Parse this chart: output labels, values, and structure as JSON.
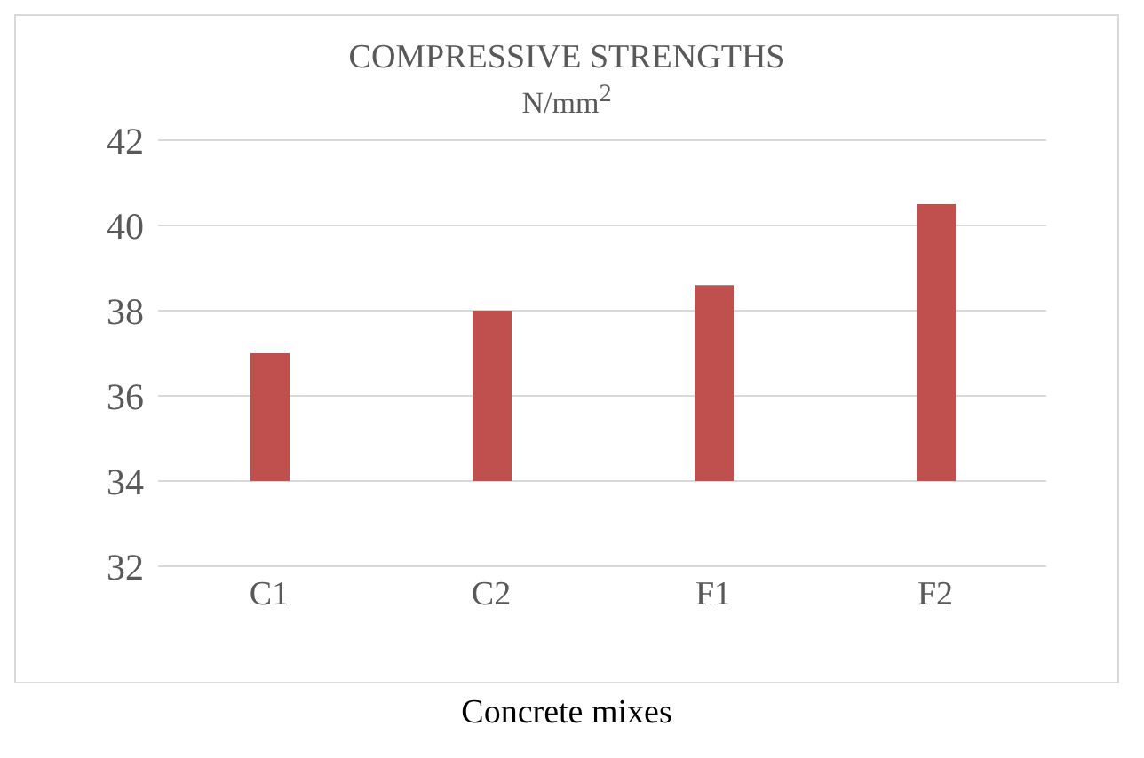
{
  "chart_data": {
    "type": "bar",
    "title": "COMPRESSIVE STRENGTHS",
    "subtitle": "N/mm$^{2}$",
    "xlabel": "Concrete mixes",
    "categories": [
      "C1",
      "C2",
      "F1",
      "F2"
    ],
    "values": [
      3.0,
      4.0,
      4.6,
      6.5
    ],
    "base": [
      34,
      34,
      34,
      34
    ],
    "color": "#c0504d",
    "ylim": [
      32,
      42
    ],
    "yticks": [
      32,
      34,
      36,
      38,
      40,
      42
    ],
    "grid": "y"
  }
}
